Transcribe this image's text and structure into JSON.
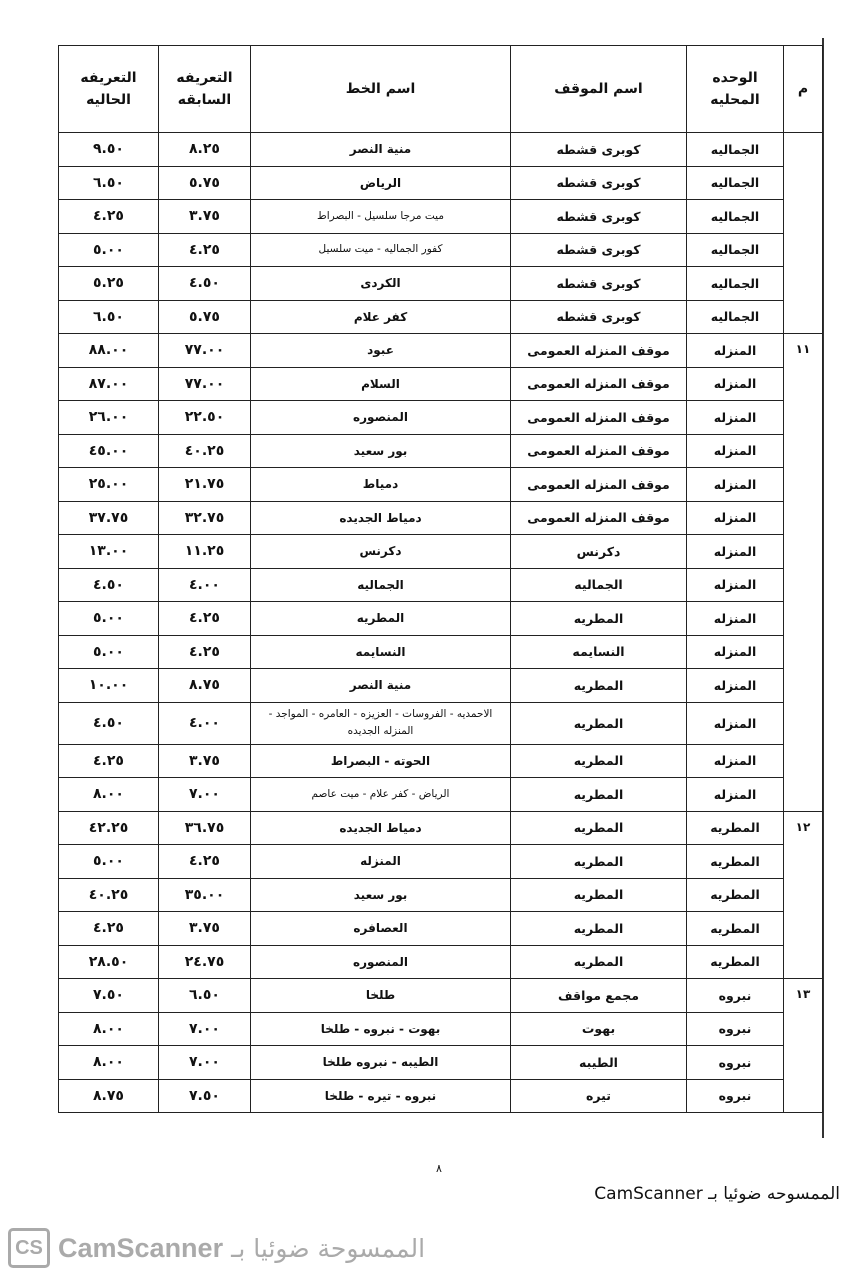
{
  "headers": {
    "num": "م",
    "region": "الوحده المحليه",
    "station": "اسم الموقف",
    "line": "اسم الخط",
    "prev": "التعريفه السابقه",
    "curr": "التعريفه الحاليه"
  },
  "groups": [
    {
      "num": "",
      "count": 6
    },
    {
      "num": "١١",
      "count": 14
    },
    {
      "num": "١٢",
      "count": 5
    },
    {
      "num": "١٣",
      "count": 4
    }
  ],
  "rows": [
    {
      "region": "الجماليه",
      "station": "كوبرى قشطه",
      "line": "منية النصر",
      "prev": "٨.٢٥",
      "curr": "٩.٥٠"
    },
    {
      "region": "الجماليه",
      "station": "كوبرى قشطه",
      "line": "الرياض",
      "prev": "٥.٧٥",
      "curr": "٦.٥٠"
    },
    {
      "region": "الجماليه",
      "station": "كوبرى قشطه",
      "line": "ميت مرجا سلسيل - البصراط",
      "prev": "٣.٧٥",
      "curr": "٤.٢٥",
      "small": true
    },
    {
      "region": "الجماليه",
      "station": "كوبرى قشطه",
      "line": "كفور الجماليه - ميت سلسيل",
      "prev": "٤.٢٥",
      "curr": "٥.٠٠",
      "small": true
    },
    {
      "region": "الجماليه",
      "station": "كوبرى قشطه",
      "line": "الكردى",
      "prev": "٤.٥٠",
      "curr": "٥.٢٥"
    },
    {
      "region": "الجماليه",
      "station": "كوبرى قشطه",
      "line": "كفر علام",
      "prev": "٥.٧٥",
      "curr": "٦.٥٠"
    },
    {
      "region": "المنزله",
      "station": "موقف المنزله العمومى",
      "line": "عبود",
      "prev": "٧٧.٠٠",
      "curr": "٨٨.٠٠"
    },
    {
      "region": "المنزله",
      "station": "موقف المنزله العمومى",
      "line": "السلام",
      "prev": "٧٧.٠٠",
      "curr": "٨٧.٠٠"
    },
    {
      "region": "المنزله",
      "station": "موقف المنزله العمومى",
      "line": "المنصوره",
      "prev": "٢٢.٥٠",
      "curr": "٢٦.٠٠"
    },
    {
      "region": "المنزله",
      "station": "موقف المنزله العمومى",
      "line": "بور سعيد",
      "prev": "٤٠.٢٥",
      "curr": "٤٥.٠٠"
    },
    {
      "region": "المنزله",
      "station": "موقف المنزله العمومى",
      "line": "دمياط",
      "prev": "٢١.٧٥",
      "curr": "٢٥.٠٠"
    },
    {
      "region": "المنزله",
      "station": "موقف المنزله العمومى",
      "line": "دمياط الجديده",
      "prev": "٣٢.٧٥",
      "curr": "٣٧.٧٥"
    },
    {
      "region": "المنزله",
      "station": "دكرنس",
      "line": "دكرنس",
      "prev": "١١.٢٥",
      "curr": "١٣.٠٠"
    },
    {
      "region": "المنزله",
      "station": "الجماليه",
      "line": "الجماليه",
      "prev": "٤.٠٠",
      "curr": "٤.٥٠"
    },
    {
      "region": "المنزله",
      "station": "المطريه",
      "line": "المطريه",
      "prev": "٤.٢٥",
      "curr": "٥.٠٠"
    },
    {
      "region": "المنزله",
      "station": "النسايمه",
      "line": "النسايمه",
      "prev": "٤.٢٥",
      "curr": "٥.٠٠"
    },
    {
      "region": "المنزله",
      "station": "المطريه",
      "line": "منية النصر",
      "prev": "٨.٧٥",
      "curr": "١٠.٠٠"
    },
    {
      "region": "المنزله",
      "station": "المطريه",
      "line": "الاحمديه - الفروسات - العزيزه - العامره - المواجد - المنزله الجديده",
      "prev": "٤.٠٠",
      "curr": "٤.٥٠",
      "small": true,
      "tall": true
    },
    {
      "region": "المنزله",
      "station": "المطريه",
      "line": "الحوته - البصراط",
      "prev": "٣.٧٥",
      "curr": "٤.٢٥"
    },
    {
      "region": "المنزله",
      "station": "المطريه",
      "line": "الرياض - كفر علام - ميت عاصم",
      "prev": "٧.٠٠",
      "curr": "٨.٠٠",
      "small": true
    },
    {
      "region": "المطريه",
      "station": "المطريه",
      "line": "دمياط الجديده",
      "prev": "٣٦.٧٥",
      "curr": "٤٢.٢٥"
    },
    {
      "region": "المطريه",
      "station": "المطريه",
      "line": "المنزله",
      "prev": "٤.٢٥",
      "curr": "٥.٠٠"
    },
    {
      "region": "المطريه",
      "station": "المطريه",
      "line": "بور سعيد",
      "prev": "٣٥.٠٠",
      "curr": "٤٠.٢٥"
    },
    {
      "region": "المطريه",
      "station": "المطريه",
      "line": "العصافره",
      "prev": "٣.٧٥",
      "curr": "٤.٢٥"
    },
    {
      "region": "المطريه",
      "station": "المطريه",
      "line": "المنصوره",
      "prev": "٢٤.٧٥",
      "curr": "٢٨.٥٠"
    },
    {
      "region": "نبروه",
      "station": "مجمع مواقف",
      "line": "طلخا",
      "prev": "٦.٥٠",
      "curr": "٧.٥٠"
    },
    {
      "region": "نبروه",
      "station": "بهوت",
      "line": "بهوت - نبروه - طلخا",
      "prev": "٧.٠٠",
      "curr": "٨.٠٠"
    },
    {
      "region": "نبروه",
      "station": "الطيبه",
      "line": "الطيبه - نبروه طلخا",
      "prev": "٧.٠٠",
      "curr": "٨.٠٠"
    },
    {
      "region": "نبروه",
      "station": "تيره",
      "line": "نبروه - تيره - طلخا",
      "prev": "٧.٥٠",
      "curr": "٨.٧٥"
    }
  ],
  "footer": {
    "page_number": "٨",
    "scan_note": "الممسوحه ضوئيا بـ CamScanner",
    "watermark_ar": "الممسوحة ضوئيا بـ",
    "watermark_brand": "CamScanner",
    "watermark_logo": "CS"
  }
}
